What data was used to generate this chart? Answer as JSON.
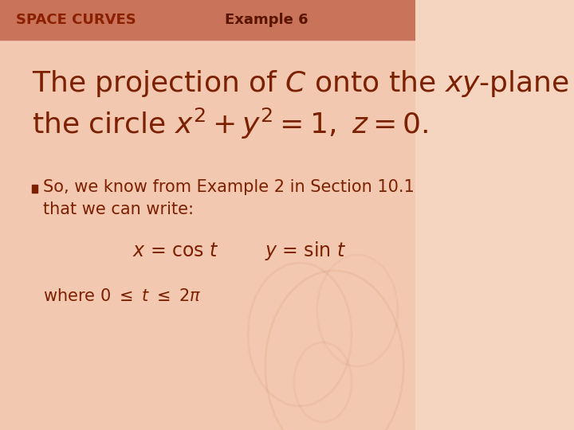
{
  "bg_color_top": "#f5d5c0",
  "bg_color_bottom": "#f0c8b0",
  "header_bg": "#d4856a",
  "header_text_left": "SPACE CURVES",
  "header_text_right": "Example 6",
  "header_text_color": "#7a2000",
  "header_text_color_bold": "#8b2500",
  "title_line1": "The projection of ",
  "title_C": "C",
  "title_line1b": " onto the ",
  "title_xy": "xy",
  "title_line1c": "-plane is",
  "title_line2a": "the circle ",
  "title_line2b": "x",
  "title_line2c": "2",
  "title_line2d": " + ",
  "title_line2e": "y",
  "title_line2f": "2",
  "title_line2g": " = 1, ",
  "title_line2h": "z",
  "title_line2i": " = 0.",
  "body_text_color": "#7a2000",
  "bullet_text1": "So, we know from Example 2 in Section 10.1",
  "bullet_text2": "that we can write:",
  "eq_line": "x = cos t        y = sin t",
  "where_line": "where 0 ≤ t ≤ 2π",
  "title_fontsize": 28,
  "header_fontsize": 14,
  "body_fontsize": 16,
  "eq_fontsize": 18
}
